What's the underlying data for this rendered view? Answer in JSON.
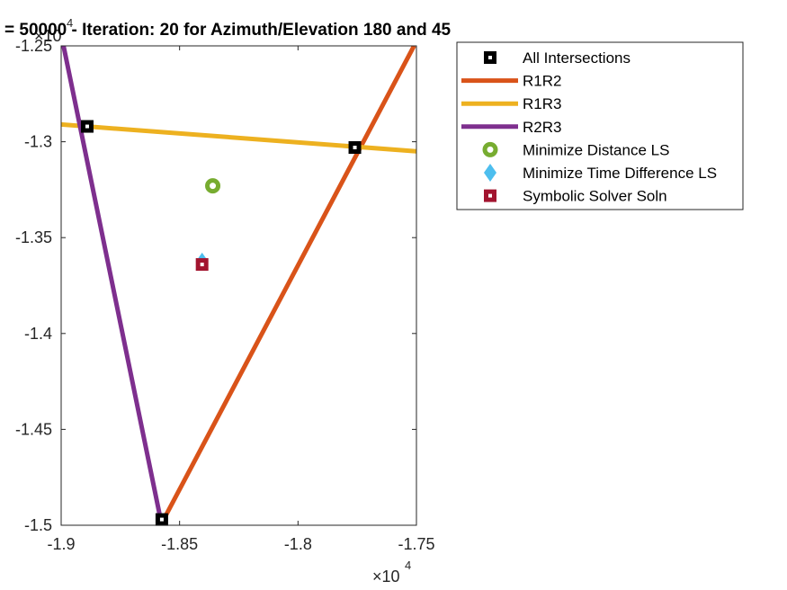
{
  "chart_data": {
    "type": "line",
    "title": "= 50000 - Iteration: 20 for Azimuth/Elevation 180 and 45",
    "xlim": [
      -19000,
      -17500
    ],
    "ylim": [
      -15000,
      -12500
    ],
    "x_ticks": [
      -19000,
      -18500,
      -18000,
      -17500
    ],
    "x_tick_labels": [
      "-1.9",
      "-1.85",
      "-1.8",
      "-1.75"
    ],
    "y_ticks": [
      -15000,
      -14500,
      -14000,
      -13500,
      -13000,
      -12500
    ],
    "y_tick_labels": [
      "-1.5",
      "-1.45",
      "-1.4",
      "-1.35",
      "-1.3",
      "-1.25"
    ],
    "x_exponent": {
      "base": "×10",
      "power": "4"
    },
    "y_exponent": {
      "base": "×10",
      "power": "4"
    },
    "lines": [
      {
        "name": "R1R2",
        "color": "#D95319",
        "points": [
          [
            -18580,
            -15000
          ],
          [
            -17510,
            -12500
          ]
        ]
      },
      {
        "name": "R1R3",
        "color": "#EDB120",
        "points": [
          [
            -19000,
            -12910
          ],
          [
            -17500,
            -13050
          ]
        ]
      },
      {
        "name": "R2R3",
        "color": "#7E2F8E",
        "points": [
          [
            -18990,
            -12500
          ],
          [
            -18575,
            -15000
          ]
        ]
      }
    ],
    "intersections": [
      [
        -18890,
        -12920
      ],
      [
        -17760,
        -13030
      ],
      [
        -18575,
        -14970
      ]
    ],
    "min_distance_ls": [
      -18360,
      -13230
    ],
    "min_time_diff_ls": [
      -18405,
      -13625
    ],
    "symbolic_solver_soln": [
      -18405,
      -13640
    ]
  },
  "legend": {
    "position": "top-right, outside axes",
    "items": [
      {
        "label": "All Intersections",
        "marker": "square-black"
      },
      {
        "label": "R1R2",
        "marker": "line",
        "color": "#D95319"
      },
      {
        "label": "R1R3",
        "marker": "line",
        "color": "#EDB120"
      },
      {
        "label": "R2R3",
        "marker": "line",
        "color": "#7E2F8E"
      },
      {
        "label": "Minimize Distance LS",
        "marker": "circle",
        "color": "#77AC30"
      },
      {
        "label": "Minimize Time Difference LS",
        "marker": "diamond",
        "color": "#4DBEEE"
      },
      {
        "label": "Symbolic Solver Soln",
        "marker": "square",
        "color": "#A2142F"
      }
    ]
  }
}
